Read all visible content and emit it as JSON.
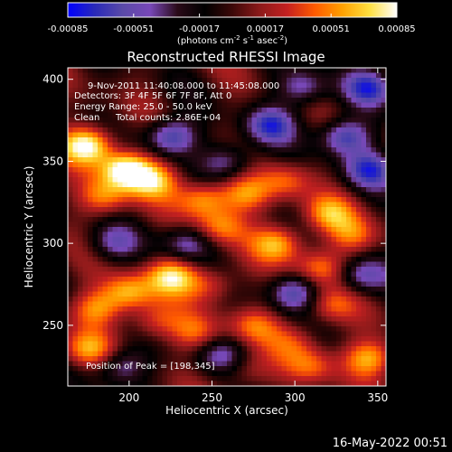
{
  "chart_data": {
    "type": "heatmap",
    "title": "Reconstructed RHESSI Image",
    "xlabel": "Heliocentric X (arcsec)",
    "ylabel": "Heliocentric Y (arcsec)",
    "xlim": [
      163,
      355
    ],
    "ylim": [
      213,
      407
    ],
    "x_ticks": [
      200,
      250,
      300,
      350
    ],
    "y_ticks": [
      250,
      300,
      350,
      400
    ],
    "x_tick_labels": [
      "200",
      "250",
      "300",
      "350"
    ],
    "y_tick_labels": [
      "250",
      "300",
      "350",
      "400"
    ],
    "colorbar": {
      "range": [
        -0.00085,
        0.00085
      ],
      "ticks": [
        -0.00085,
        -0.00051,
        -0.00017,
        0.00017,
        0.00051,
        0.00085
      ],
      "tick_labels": [
        "-0.00085",
        "-0.00051",
        "-0.00017",
        "0.00017",
        "0.00051",
        "0.00085"
      ],
      "unit_parts": [
        "(photons cm",
        "-2",
        " s",
        "-1",
        " asec",
        "-2",
        ")"
      ],
      "colors": [
        "#0000ff",
        "#2a2ab8",
        "#5a4aa8",
        "#7848b8",
        "#2a0a18",
        "#000000",
        "#3c0808",
        "#8c1a1a",
        "#c42020",
        "#ff5a00",
        "#ffa000",
        "#ffe040",
        "#ffffff"
      ]
    },
    "annotations": {
      "time": "9-Nov-2011 11:40:08.000 to 11:45:08.000",
      "detectors": "Detectors: 3F 4F 5F 6F 7F 8F, Att 0",
      "energy": "Energy Range: 25.0 - 50.0 keV",
      "method": "Clean",
      "counts": "Total counts: 2.86E+04",
      "peak": "Position of Peak = [198,345]"
    },
    "peak": [
      198,
      345
    ],
    "features": [
      {
        "x": 175,
        "y": 360,
        "amp": 0.0009
      },
      {
        "x": 198,
        "y": 345,
        "amp": 0.00095
      },
      {
        "x": 215,
        "y": 338,
        "amp": 0.0006
      },
      {
        "x": 185,
        "y": 328,
        "amp": 0.0005
      },
      {
        "x": 245,
        "y": 327,
        "amp": 0.0006
      },
      {
        "x": 270,
        "y": 330,
        "amp": 0.0005
      },
      {
        "x": 295,
        "y": 338,
        "amp": 0.0004
      },
      {
        "x": 255,
        "y": 310,
        "amp": 0.0005
      },
      {
        "x": 290,
        "y": 300,
        "amp": 0.0006
      },
      {
        "x": 320,
        "y": 318,
        "amp": 0.0005
      },
      {
        "x": 335,
        "y": 305,
        "amp": 0.0004
      },
      {
        "x": 200,
        "y": 270,
        "amp": 0.0006
      },
      {
        "x": 226,
        "y": 280,
        "amp": 0.0007
      },
      {
        "x": 250,
        "y": 275,
        "amp": 0.0004
      },
      {
        "x": 315,
        "y": 285,
        "amp": 0.0005
      },
      {
        "x": 180,
        "y": 260,
        "amp": 0.0005
      },
      {
        "x": 215,
        "y": 252,
        "amp": 0.0004
      },
      {
        "x": 240,
        "y": 245,
        "amp": 0.0004
      },
      {
        "x": 275,
        "y": 250,
        "amp": 0.0004
      },
      {
        "x": 175,
        "y": 235,
        "amp": 0.0005
      },
      {
        "x": 300,
        "y": 240,
        "amp": 0.0003
      },
      {
        "x": 320,
        "y": 262,
        "amp": 0.0004
      },
      {
        "x": 345,
        "y": 230,
        "amp": 0.0006
      },
      {
        "x": 310,
        "y": 225,
        "amp": 0.0004
      },
      {
        "x": 270,
        "y": 222,
        "amp": 0.0003
      },
      {
        "x": 225,
        "y": 365,
        "amp": -0.0007
      },
      {
        "x": 285,
        "y": 372,
        "amp": -0.0006
      },
      {
        "x": 330,
        "y": 365,
        "amp": -0.0007
      },
      {
        "x": 345,
        "y": 395,
        "amp": -0.0006
      },
      {
        "x": 305,
        "y": 395,
        "amp": -0.0005
      },
      {
        "x": 235,
        "y": 300,
        "amp": -0.0005
      },
      {
        "x": 300,
        "y": 270,
        "amp": -0.0006
      },
      {
        "x": 340,
        "y": 280,
        "amp": -0.0005
      },
      {
        "x": 345,
        "y": 345,
        "amp": -0.0006
      },
      {
        "x": 190,
        "y": 300,
        "amp": -0.0004
      },
      {
        "x": 260,
        "y": 350,
        "amp": -0.0005
      },
      {
        "x": 195,
        "y": 225,
        "amp": -0.0005
      },
      {
        "x": 255,
        "y": 232,
        "amp": -0.0004
      }
    ]
  },
  "footer": {
    "timestamp": "16-May-2022 00:51"
  }
}
